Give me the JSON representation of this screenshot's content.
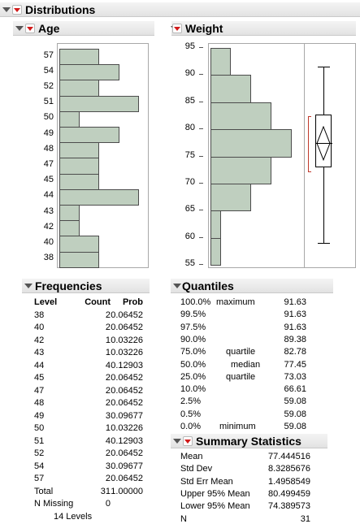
{
  "title": "Distributions",
  "age": {
    "title": "Age",
    "levels": [
      "57",
      "54",
      "52",
      "51",
      "50",
      "49",
      "48",
      "47",
      "45",
      "44",
      "43",
      "42",
      "40",
      "38"
    ],
    "counts": [
      2,
      3,
      2,
      4,
      1,
      3,
      2,
      2,
      2,
      4,
      1,
      1,
      2,
      2
    ]
  },
  "weight": {
    "title": "Weight",
    "ticks": [
      "95",
      "90",
      "85",
      "80",
      "75",
      "70",
      "65",
      "60",
      "55"
    ],
    "hist": {
      "bin_width": 5,
      "bins": [
        [
          90,
          95,
          1
        ],
        [
          85,
          90,
          2
        ],
        [
          80,
          85,
          3
        ],
        [
          75,
          80,
          4
        ],
        [
          70,
          75,
          3
        ],
        [
          65,
          70,
          2
        ],
        [
          60,
          65,
          0.5
        ],
        [
          55,
          60,
          0.5
        ]
      ]
    },
    "box": {
      "min": 59.08,
      "q1": 73.03,
      "median": 77.45,
      "q3": 82.78,
      "max": 91.63,
      "mean": 77.444516,
      "ci_low": 74.389573,
      "ci_high": 80.499459
    }
  },
  "frequencies": {
    "title": "Frequencies",
    "headers": [
      "Level",
      "Count",
      "Prob"
    ],
    "rows": [
      [
        "38",
        "2",
        "0.06452"
      ],
      [
        "40",
        "2",
        "0.06452"
      ],
      [
        "42",
        "1",
        "0.03226"
      ],
      [
        "43",
        "1",
        "0.03226"
      ],
      [
        "44",
        "4",
        "0.12903"
      ],
      [
        "45",
        "2",
        "0.06452"
      ],
      [
        "47",
        "2",
        "0.06452"
      ],
      [
        "48",
        "2",
        "0.06452"
      ],
      [
        "49",
        "3",
        "0.09677"
      ],
      [
        "50",
        "1",
        "0.03226"
      ],
      [
        "51",
        "4",
        "0.12903"
      ],
      [
        "52",
        "2",
        "0.06452"
      ],
      [
        "54",
        "3",
        "0.09677"
      ],
      [
        "57",
        "2",
        "0.06452"
      ]
    ],
    "total_label": "Total",
    "total_count": "31",
    "total_prob": "1.00000",
    "missing_label": "N Missing",
    "missing_value": "0",
    "levels_text": "14  Levels"
  },
  "quantiles": {
    "title": "Quantiles",
    "rows": [
      [
        "100.0%",
        "maximum",
        "91.63"
      ],
      [
        "99.5%",
        "",
        "91.63"
      ],
      [
        "97.5%",
        "",
        "91.63"
      ],
      [
        "90.0%",
        "",
        "89.38"
      ],
      [
        "75.0%",
        "quartile",
        "82.78"
      ],
      [
        "50.0%",
        "median",
        "77.45"
      ],
      [
        "25.0%",
        "quartile",
        "73.03"
      ],
      [
        "10.0%",
        "",
        "66.61"
      ],
      [
        "2.5%",
        "",
        "59.08"
      ],
      [
        "0.5%",
        "",
        "59.08"
      ],
      [
        "0.0%",
        "minimum",
        "59.08"
      ]
    ]
  },
  "summary": {
    "title": "Summary Statistics",
    "rows": [
      [
        "Mean",
        "77.444516"
      ],
      [
        "Std Dev",
        "8.3285676"
      ],
      [
        "Std Err Mean",
        "1.4958549"
      ],
      [
        "Upper 95% Mean",
        "80.499459"
      ],
      [
        "Lower 95% Mean",
        "74.389573"
      ],
      [
        "N",
        "31"
      ]
    ]
  },
  "colors": {
    "bar_fill": "#bfcfbf",
    "bar_stroke": "#4c4c4c",
    "ci_bracket": "#c0392b",
    "menu_red": "#d11a1a"
  }
}
